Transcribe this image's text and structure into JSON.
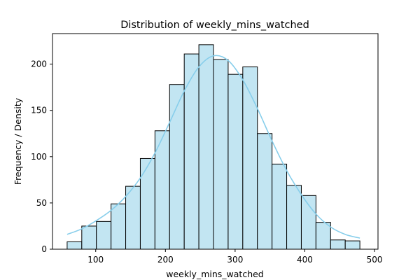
{
  "chart_data": {
    "type": "bar",
    "title": "Distribution of weekly_mins_watched",
    "xlabel": "weekly_mins_watched",
    "ylabel": "Frequency / Density",
    "xlim": [
      38,
      505
    ],
    "ylim": [
      0,
      233
    ],
    "xticks": [
      100,
      200,
      300,
      400,
      500
    ],
    "yticks": [
      0,
      50,
      100,
      150,
      200
    ],
    "bin_edges": [
      59,
      80,
      101,
      122,
      143,
      164,
      185,
      206,
      227,
      248,
      269,
      290,
      311,
      332,
      353,
      374,
      395,
      416,
      437,
      458,
      479
    ],
    "counts": [
      8,
      25,
      30,
      49,
      68,
      98,
      128,
      178,
      211,
      221,
      205,
      189,
      197,
      125,
      92,
      69,
      58,
      29,
      10,
      9
    ],
    "kde_curve": {
      "x": [
        59,
        80,
        101,
        122,
        143,
        164,
        185,
        206,
        227,
        248,
        269,
        290,
        311,
        332,
        353,
        374,
        395,
        416,
        437,
        458,
        479
      ],
      "y": [
        16,
        22,
        31,
        42,
        57,
        77,
        104,
        137,
        171,
        197,
        209,
        204,
        183,
        152,
        117,
        85,
        59,
        38,
        24,
        16,
        12
      ]
    },
    "bar_color": "#c2e5f2",
    "kde_color": "#87ceeb",
    "grid": false,
    "legend": "none"
  }
}
